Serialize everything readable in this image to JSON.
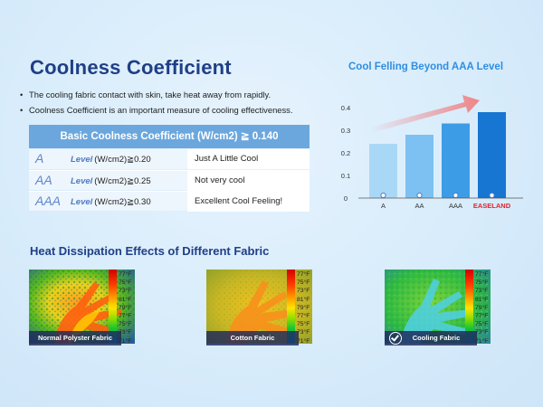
{
  "main": {
    "title": "Coolness Coefficient",
    "bullets": [
      "The cooling fabric contact with skin, take heat away from rapidly.",
      "Coolness Coefficient is an important measure of cooling effectiveness."
    ]
  },
  "coef_table": {
    "header": "Basic Coolness Coefficient (W/cm2) ≧ 0.140",
    "level_word": "Level",
    "rows": [
      {
        "grade": "A",
        "spec": "(W/cm2)≧0.20",
        "desc": "Just A Little Cool"
      },
      {
        "grade": "AA",
        "spec": "(W/cm2)≧0.25",
        "desc": "Not very cool"
      },
      {
        "grade": "AAA",
        "spec": "(W/cm2)≧0.30",
        "desc": "Excellent Cool Feeling!"
      }
    ]
  },
  "chart_title": "Cool Felling Beyond AAA Level",
  "chart_data": {
    "type": "bar",
    "categories": [
      "A",
      "AA",
      "AAA",
      "EASELAND"
    ],
    "values": [
      0.24,
      0.28,
      0.33,
      0.38
    ],
    "yticks": [
      "0",
      "0.1",
      "0.2",
      "0.3",
      "0.4"
    ],
    "ylim": [
      0,
      0.4
    ],
    "colors": [
      "#a9d8f7",
      "#7cc1f1",
      "#3d9ce6",
      "#1676d2"
    ],
    "highlight_label_color": "#e0232e",
    "arrow_color": "#f08080"
  },
  "heat": {
    "title": "Heat Dissipation Effects of Different Fabric",
    "scale_labels": [
      "77°F",
      "75°F",
      "73°F",
      "81°F",
      "79°F",
      "77°F",
      "75°F",
      "73°F",
      "71°F"
    ],
    "fabrics": [
      "Normal Polyster Fabric",
      "Cotton Fabric",
      "Cooling Fabric"
    ],
    "check_icon": "check-circle-icon"
  }
}
